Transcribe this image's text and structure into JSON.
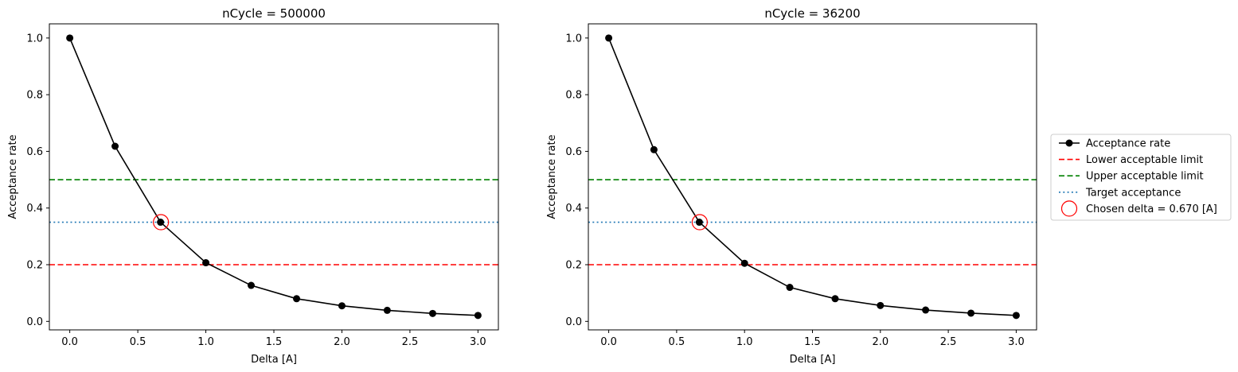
{
  "chart_data": [
    {
      "type": "line",
      "title": "nCycle = 500000",
      "xlabel": "Delta  [A]",
      "ylabel": "Acceptance rate",
      "xlim": [
        -0.15,
        3.15
      ],
      "ylim": [
        -0.03,
        1.05
      ],
      "xticks": [
        "0.0",
        "0.5",
        "1.0",
        "1.5",
        "2.0",
        "2.5",
        "3.0"
      ],
      "yticks": [
        "0.0",
        "0.2",
        "0.4",
        "0.6",
        "0.8",
        "1.0"
      ],
      "grid": false,
      "series": [
        {
          "name": "Acceptance rate",
          "color": "#000000",
          "x": [
            0.0,
            0.333,
            0.667,
            1.0,
            1.333,
            1.667,
            2.0,
            2.333,
            2.667,
            3.0
          ],
          "values": [
            1.0,
            0.618,
            0.35,
            0.207,
            0.127,
            0.08,
            0.055,
            0.039,
            0.028,
            0.021
          ]
        }
      ],
      "hlines": [
        {
          "name": "Lower acceptable limit",
          "y": 0.2,
          "color": "#ff0000",
          "style": "dashed"
        },
        {
          "name": "Upper acceptable limit",
          "y": 0.5,
          "color": "#008000",
          "style": "dashed"
        },
        {
          "name": "Target acceptance",
          "y": 0.35,
          "color": "#1f77b4",
          "style": "dotted"
        }
      ],
      "marker": {
        "name": "Chosen delta = 0.670 [A]",
        "x": 0.67,
        "y": 0.35,
        "color": "#ff0000"
      }
    },
    {
      "type": "line",
      "title": "nCycle = 36200",
      "xlabel": "Delta  [A]",
      "ylabel": "Acceptance rate",
      "xlim": [
        -0.15,
        3.15
      ],
      "ylim": [
        -0.03,
        1.05
      ],
      "xticks": [
        "0.0",
        "0.5",
        "1.0",
        "1.5",
        "2.0",
        "2.5",
        "3.0"
      ],
      "yticks": [
        "0.0",
        "0.2",
        "0.4",
        "0.6",
        "0.8",
        "1.0"
      ],
      "grid": false,
      "series": [
        {
          "name": "Acceptance rate",
          "color": "#000000",
          "x": [
            0.0,
            0.333,
            0.667,
            1.0,
            1.333,
            1.667,
            2.0,
            2.333,
            2.667,
            3.0
          ],
          "values": [
            1.0,
            0.606,
            0.35,
            0.205,
            0.12,
            0.08,
            0.056,
            0.04,
            0.029,
            0.021
          ]
        }
      ],
      "hlines": [
        {
          "name": "Lower acceptable limit",
          "y": 0.2,
          "color": "#ff0000",
          "style": "dashed"
        },
        {
          "name": "Upper acceptable limit",
          "y": 0.5,
          "color": "#008000",
          "style": "dashed"
        },
        {
          "name": "Target acceptance",
          "y": 0.35,
          "color": "#1f77b4",
          "style": "dotted"
        }
      ],
      "marker": {
        "name": "Chosen delta = 0.670 [A]",
        "x": 0.67,
        "y": 0.35,
        "color": "#ff0000"
      }
    }
  ],
  "legend": {
    "placement": "right-outside",
    "entries": [
      {
        "label": "Acceptance rate",
        "kind": "line-marker",
        "color": "#000000"
      },
      {
        "label": "Lower acceptable limit",
        "kind": "dashed",
        "color": "#ff0000"
      },
      {
        "label": "Upper acceptable limit",
        "kind": "dashed",
        "color": "#008000"
      },
      {
        "label": "Target acceptance",
        "kind": "dotted",
        "color": "#1f77b4"
      },
      {
        "label": "Chosen delta = 0.670 [A]",
        "kind": "circle",
        "color": "#ff0000"
      }
    ]
  }
}
